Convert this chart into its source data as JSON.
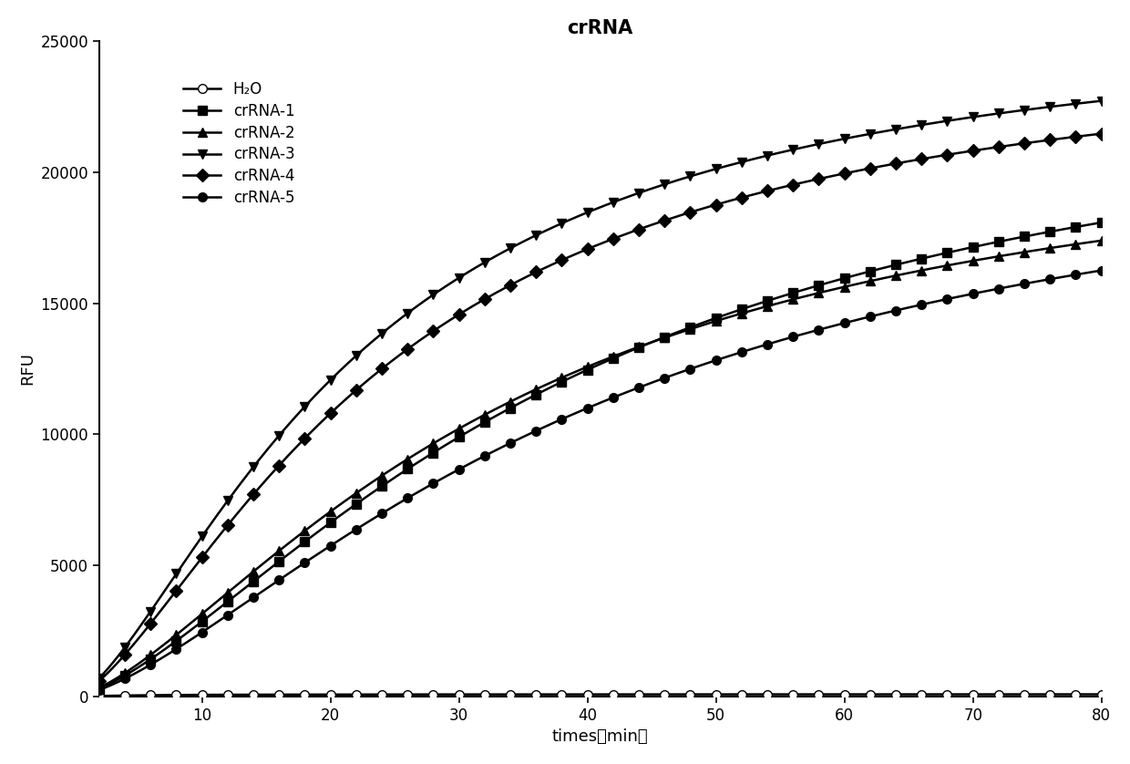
{
  "title": "crRNA",
  "xlabel": "times（min）",
  "ylabel": "RFU",
  "xlim": [
    2,
    80
  ],
  "ylim": [
    0,
    25000
  ],
  "xticks": [
    10,
    20,
    30,
    40,
    50,
    60,
    70,
    80
  ],
  "yticks": [
    0,
    5000,
    10000,
    15000,
    20000,
    25000
  ],
  "series": [
    {
      "label": "H₂O",
      "marker": "o",
      "open_marker": false,
      "Vmax": 80,
      "k": 3.5,
      "n": 1.5,
      "t_half": 5
    },
    {
      "label": "crRNA-1",
      "marker": "s",
      "open_marker": false,
      "Vmax": 24000,
      "k": 3.5,
      "n": 1.5,
      "t_half": 38
    },
    {
      "label": "crRNA-2",
      "marker": "^",
      "open_marker": false,
      "Vmax": 22000,
      "k": 3.5,
      "n": 1.5,
      "t_half": 33
    },
    {
      "label": "crRNA-3",
      "marker": "v",
      "open_marker": false,
      "Vmax": 26000,
      "k": 3.5,
      "n": 1.5,
      "t_half": 22
    },
    {
      "label": "crRNA-4",
      "marker": "D",
      "open_marker": false,
      "Vmax": 25000,
      "k": 3.5,
      "n": 1.5,
      "t_half": 24
    },
    {
      "label": "crRNA-5",
      "marker": "o",
      "open_marker": false,
      "Vmax": 22000,
      "k": 3.5,
      "n": 1.5,
      "t_half": 40
    }
  ],
  "line_color": "#000000",
  "background_color": "#ffffff",
  "title_fontsize": 15,
  "label_fontsize": 13,
  "tick_fontsize": 12,
  "legend_fontsize": 12,
  "marker_every": 2,
  "marker_size": 7,
  "line_width": 1.8
}
